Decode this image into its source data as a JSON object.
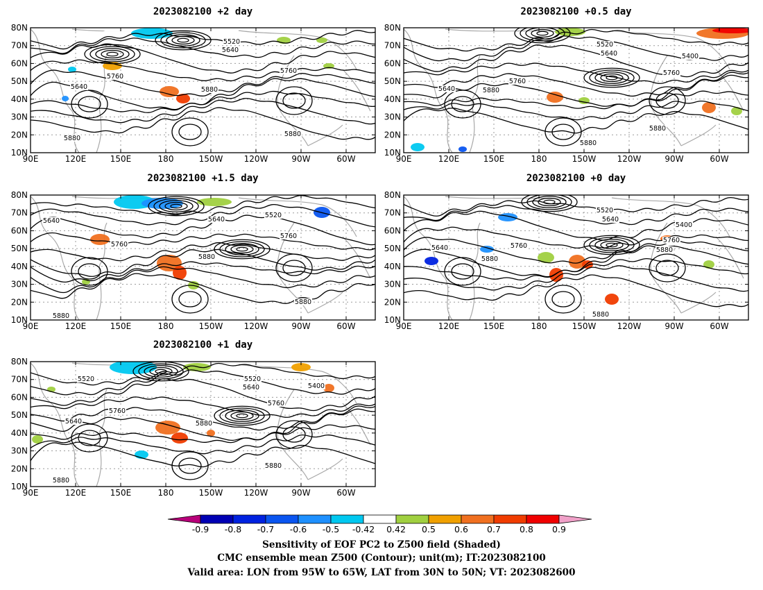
{
  "panels": [
    {
      "id": "p2",
      "title": "2023082100 +2 day",
      "contour_labels": [
        "5520",
        "5640",
        "5640",
        "5760",
        "5760",
        "5880",
        "5880",
        "5880"
      ]
    },
    {
      "id": "p05",
      "title": "2023082100 +0.5 day",
      "contour_labels": [
        "5520",
        "5640",
        "5400",
        "5640",
        "5760",
        "5760",
        "5880",
        "5880",
        "5880"
      ]
    },
    {
      "id": "p15",
      "title": "2023082100 +1.5 day",
      "contour_labels": [
        "5640",
        "5640",
        "5520",
        "5760",
        "5760",
        "5880",
        "5880",
        "5880"
      ]
    },
    {
      "id": "p0",
      "title": "2023082100 +0 day",
      "contour_labels": [
        "5520",
        "5640",
        "5400",
        "5640",
        "5760",
        "5760",
        "5880",
        "5880",
        "5880"
      ]
    },
    {
      "id": "p1",
      "title": "2023082100 +1 day",
      "contour_labels": [
        "5520",
        "5520",
        "5640",
        "5400",
        "5760",
        "5640",
        "5760",
        "5880",
        "5880",
        "5880"
      ]
    }
  ],
  "axes": {
    "lat_labels": [
      "80N",
      "70N",
      "60N",
      "50N",
      "40N",
      "30N",
      "20N",
      "10N"
    ],
    "lon_labels": [
      "90E",
      "120E",
      "150E",
      "180",
      "150W",
      "120W",
      "90W",
      "60W"
    ]
  },
  "colorbar": {
    "tick_labels": [
      "-0.9",
      "-0.8",
      "-0.7",
      "-0.6",
      "-0.5",
      "-0.42",
      "0.42",
      "0.5",
      "0.6",
      "0.7",
      "0.8",
      "0.9"
    ],
    "colors": [
      "#b8007a",
      "#0000b4",
      "#0022e0",
      "#0a55f0",
      "#1e90ff",
      "#00c8f0",
      "#ffffff",
      "#a0d040",
      "#f0a000",
      "#f07020",
      "#f03c00",
      "#f00000",
      "#f0a0c8"
    ]
  },
  "caption": [
    "Sensitivity of EOF PC2 to Z500 field (Shaded)",
    "CMC ensemble mean Z500 (Contour); unit(m); IT:2023082100",
    "Valid area: LON from 95W to 65W, LAT from 30N to 50N; VT: 2023082600"
  ]
}
